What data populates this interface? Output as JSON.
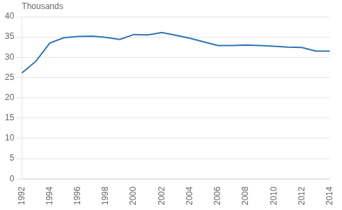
{
  "chart_data": {
    "type": "line",
    "ylabel": "Thousands",
    "x": [
      1992,
      1993,
      1994,
      1995,
      1996,
      1997,
      1998,
      1999,
      2000,
      2001,
      2002,
      2003,
      2004,
      2005,
      2006,
      2007,
      2008,
      2009,
      2010,
      2011,
      2012,
      2013,
      2014
    ],
    "values": [
      26.1,
      29.0,
      33.5,
      34.8,
      35.1,
      35.2,
      34.9,
      34.4,
      35.6,
      35.5,
      36.1,
      35.4,
      34.7,
      33.8,
      32.9,
      32.9,
      33.0,
      32.9,
      32.7,
      32.5,
      32.4,
      31.5,
      31.5
    ],
    "color": "#2E74B5",
    "xlim": [
      1992,
      2014
    ],
    "xticks": [
      1992,
      1994,
      1996,
      1998,
      2000,
      2002,
      2004,
      2006,
      2008,
      2010,
      2012,
      2014
    ],
    "ylim": [
      0,
      40
    ],
    "yticks": [
      0,
      5,
      10,
      15,
      20,
      25,
      30,
      35,
      40
    ],
    "grid": true
  }
}
